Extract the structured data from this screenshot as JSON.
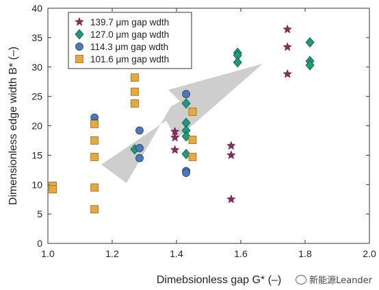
{
  "chart_data": {
    "type": "scatter",
    "xlabel": "Dimebsionless gap G* (–)",
    "ylabel": "Dimensionless edge width B* (–)",
    "xlim": [
      1.0,
      2.0
    ],
    "ylim": [
      0,
      40
    ],
    "xticks": [
      "1.0",
      "1.2",
      "1.4",
      "1.6",
      "1.8",
      "2.0"
    ],
    "yticks": [
      "0",
      "5",
      "10",
      "15",
      "20",
      "25",
      "30",
      "35",
      "40"
    ],
    "legend_position": "top-left",
    "grid": false,
    "series": [
      {
        "name": "139.7 μm gap wdth",
        "marker": "star",
        "color": "#8b2a5a",
        "points": [
          [
            1.27,
            23.8
          ],
          [
            1.395,
            19.0
          ],
          [
            1.395,
            18.0
          ],
          [
            1.395,
            15.9
          ],
          [
            1.57,
            16.6
          ],
          [
            1.57,
            15.0
          ],
          [
            1.57,
            7.5
          ],
          [
            1.745,
            36.4
          ],
          [
            1.745,
            33.4
          ],
          [
            1.745,
            28.8
          ]
        ]
      },
      {
        "name": "127.0 μm gap wdth",
        "marker": "diamond",
        "color": "#1f9a7a",
        "points": [
          [
            1.27,
            16.0
          ],
          [
            1.43,
            23.8
          ],
          [
            1.43,
            20.5
          ],
          [
            1.43,
            19.2
          ],
          [
            1.43,
            18.2
          ],
          [
            1.43,
            15.2
          ],
          [
            1.59,
            32.4
          ],
          [
            1.59,
            32.0
          ],
          [
            1.59,
            30.8
          ],
          [
            1.815,
            34.2
          ],
          [
            1.815,
            31.0
          ],
          [
            1.815,
            30.3
          ]
        ]
      },
      {
        "name": "114.3 μm gap wdth",
        "marker": "circle",
        "color": "#4f78b8",
        "points": [
          [
            1.145,
            21.4
          ],
          [
            1.145,
            20.5
          ],
          [
            1.285,
            19.2
          ],
          [
            1.285,
            16.2
          ],
          [
            1.285,
            14.5
          ],
          [
            1.43,
            25.4
          ],
          [
            1.43,
            12.3
          ],
          [
            1.43,
            12.0
          ]
        ]
      },
      {
        "name": "101.6 μm gap wdth",
        "marker": "square",
        "color": "#e9a83a",
        "points": [
          [
            1.015,
            9.8
          ],
          [
            1.015,
            9.2
          ],
          [
            1.145,
            20.3
          ],
          [
            1.145,
            17.5
          ],
          [
            1.145,
            14.7
          ],
          [
            1.145,
            9.5
          ],
          [
            1.145,
            5.8
          ],
          [
            1.27,
            28.2
          ],
          [
            1.27,
            25.8
          ],
          [
            1.27,
            23.8
          ],
          [
            1.45,
            22.4
          ],
          [
            1.45,
            17.6
          ],
          [
            1.45,
            14.7
          ]
        ]
      }
    ]
  },
  "watermark": {
    "text": "新能源Leander",
    "icon": "wechat-icon"
  }
}
